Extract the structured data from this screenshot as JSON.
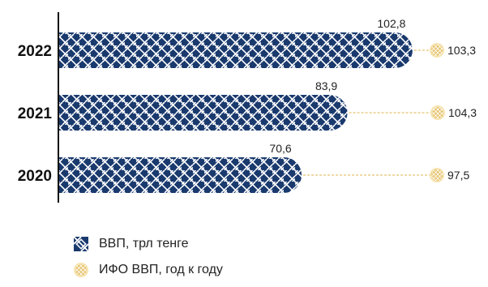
{
  "chart_data": {
    "type": "bar",
    "orientation": "horizontal",
    "categories": [
      "2022",
      "2021",
      "2020"
    ],
    "series": [
      {
        "name": "ВВП, трл тенге",
        "values": [
          102.8,
          83.9,
          70.6
        ],
        "labels": [
          "102,8",
          "83,9",
          "70,6"
        ]
      },
      {
        "name": "ИФО ВВП, год к году",
        "values": [
          103.3,
          104.3,
          97.5
        ],
        "labels": [
          "103,3",
          "104,3",
          "97,5"
        ]
      }
    ],
    "xlim": [
      0,
      130
    ],
    "grid": false,
    "legend_position": "bottom-left"
  },
  "colors": {
    "bar_fill": "#1a3a6e",
    "bar_pattern_line": "#ffffff",
    "marker_fill": "#e6c36d",
    "marker_stroke": "#f6e4b2",
    "connector": "#e6c36d",
    "axis": "#111111"
  },
  "legend": {
    "gdp_label": "ВВП, трл тенге",
    "gdp_icon": "woven-pattern-square-icon",
    "ifo_label": "ИФО ВВП, год к году",
    "ifo_icon": "woven-circle-icon"
  }
}
